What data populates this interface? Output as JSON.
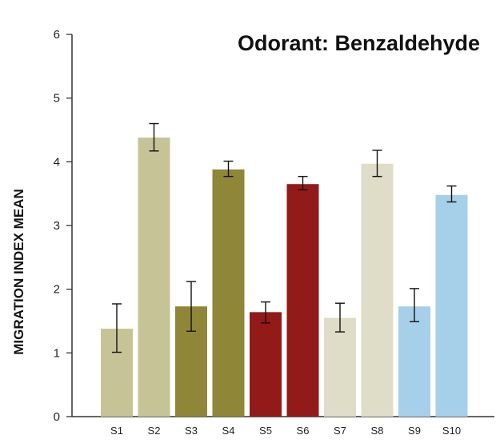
{
  "chart_data": {
    "type": "bar",
    "title": "Odorant: Benzaldehyde",
    "ylabel": "MIGRATION INDEX MEAN",
    "xlabel": "",
    "categories": [
      "S1",
      "S2",
      "S3",
      "S4",
      "S5",
      "S6",
      "S7",
      "S8",
      "S9",
      "S10"
    ],
    "values": [
      1.38,
      4.38,
      1.73,
      3.88,
      1.64,
      3.65,
      1.55,
      3.97,
      1.73,
      3.48
    ],
    "error_low": [
      1.01,
      4.17,
      1.34,
      3.77,
      1.47,
      3.56,
      1.33,
      3.77,
      1.49,
      3.37
    ],
    "error_high": [
      1.77,
      4.6,
      2.12,
      4.01,
      1.8,
      3.77,
      1.78,
      4.18,
      2.01,
      3.62
    ],
    "colors": [
      "#c6c397",
      "#c6c397",
      "#8f8737",
      "#8f8737",
      "#921a19",
      "#921a19",
      "#dfdcc8",
      "#dfdcc8",
      "#a6cfea",
      "#a6cfea"
    ],
    "ylim": [
      0,
      6
    ],
    "yticks": [
      "0",
      "1",
      "2",
      "3",
      "4",
      "5",
      "6"
    ],
    "grid": false
  }
}
